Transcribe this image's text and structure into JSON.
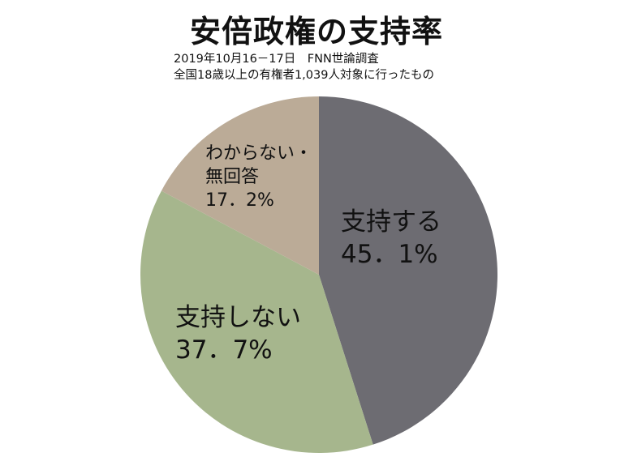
{
  "title": "安倍政権の支持率",
  "subtitle_lines": [
    "2019年10月16－17日　FNN世論調査",
    "全国18歳以上の有権者1,039人対象に行ったもの"
  ],
  "chart_data": {
    "type": "pie",
    "title": "安倍政権の支持率",
    "slices": [
      {
        "label": "支持する",
        "label_lines": [
          "支持する"
        ],
        "value": 45.1,
        "value_text": "45．1%",
        "color": "#6d6c72"
      },
      {
        "label": "支持しない",
        "label_lines": [
          "支持しない"
        ],
        "value": 37.7,
        "value_text": "37．7%",
        "color": "#a6b68d"
      },
      {
        "label": "わからない・無回答",
        "label_lines": [
          "わからない・",
          "無回答"
        ],
        "value": 17.2,
        "value_text": "17．2%",
        "color": "#bbab97"
      }
    ],
    "start_angle": "12 o'clock",
    "direction": "clockwise",
    "legend": "none"
  }
}
